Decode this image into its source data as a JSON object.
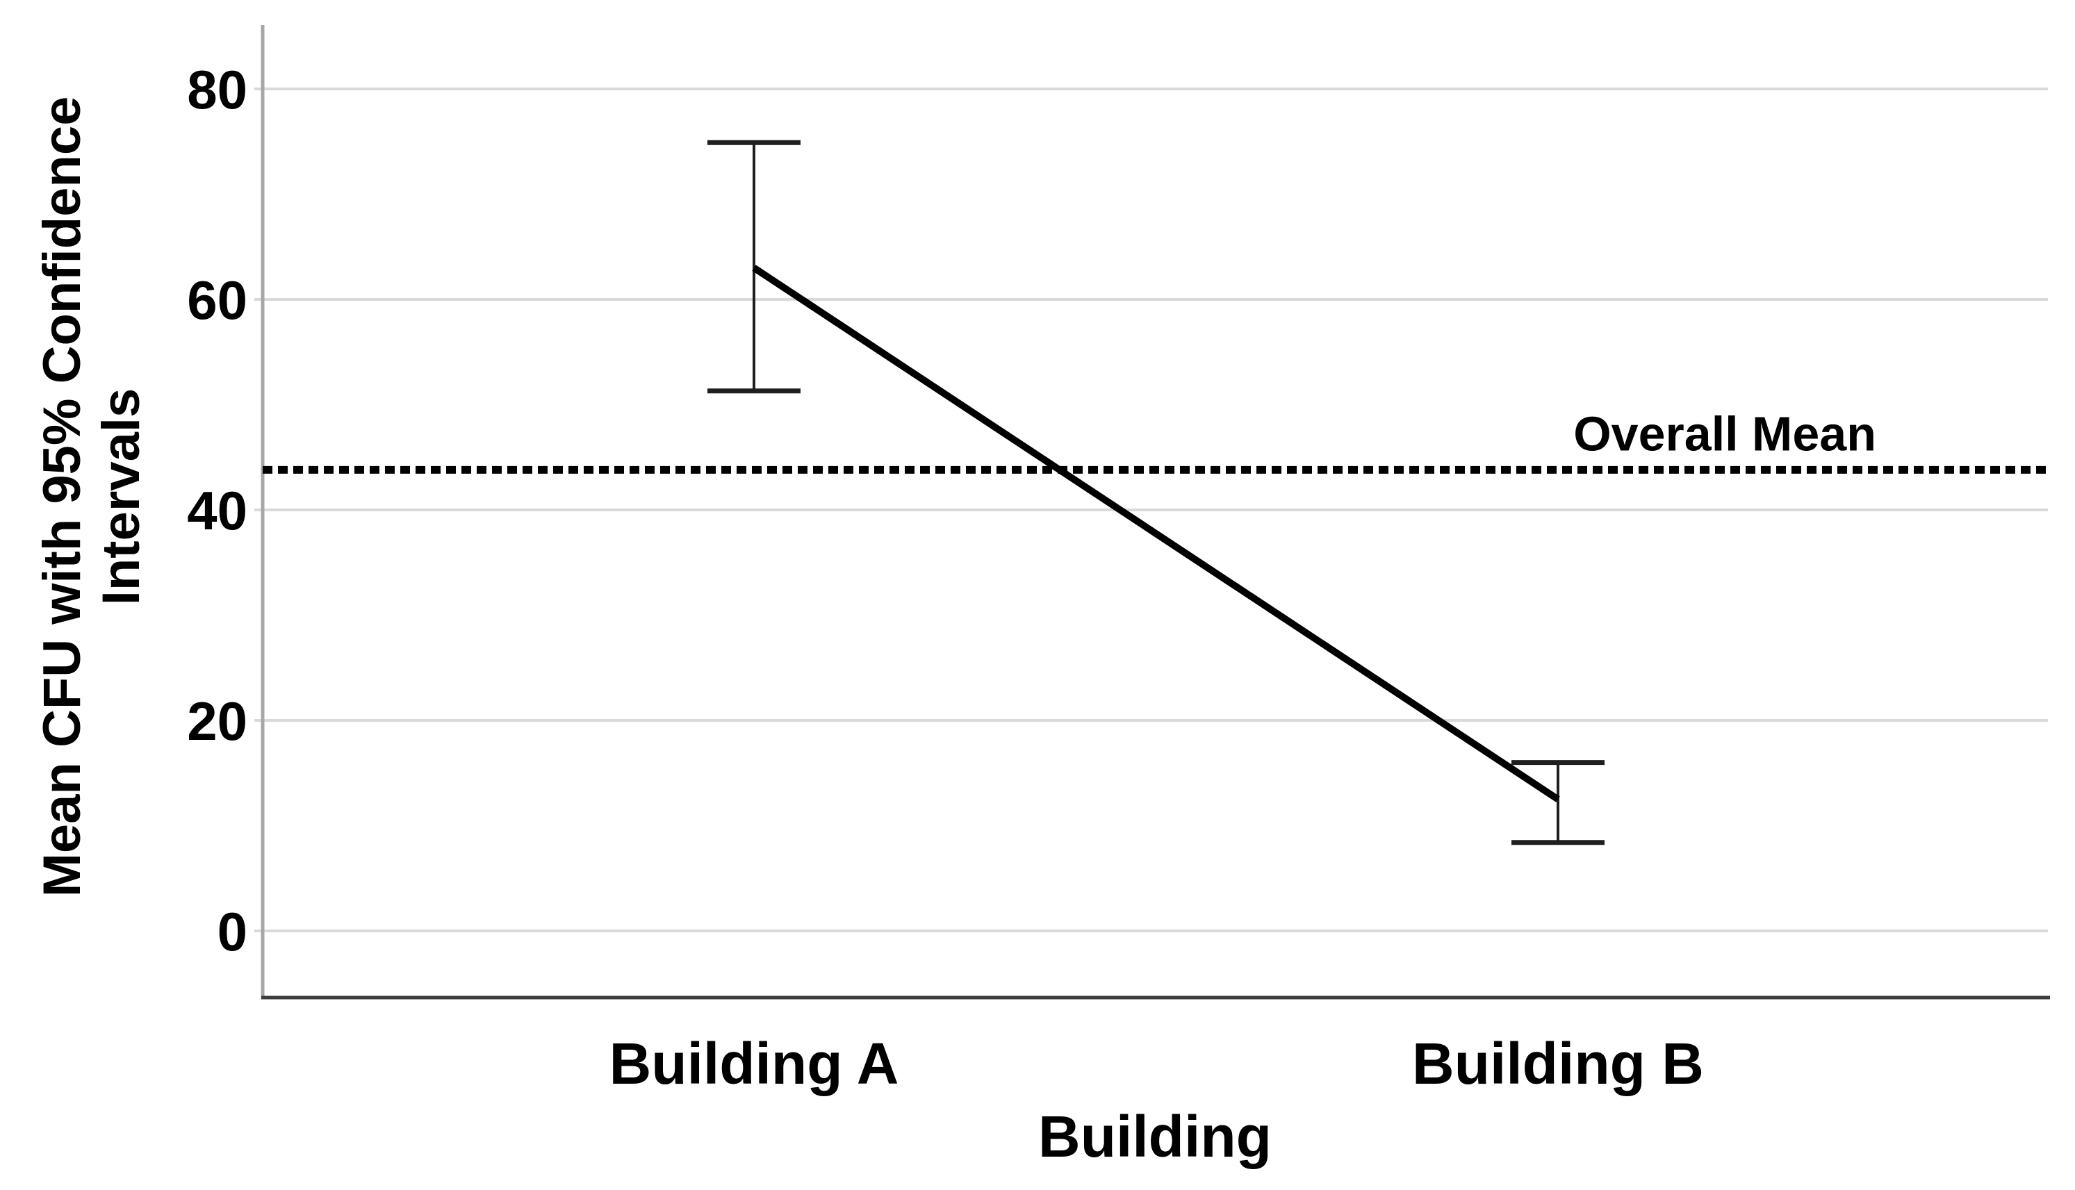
{
  "chart_data": {
    "type": "line",
    "title": "",
    "categories": [
      "Building A",
      "Building B"
    ],
    "series": [
      {
        "name": "Mean CFU",
        "values": [
          63,
          12.5
        ],
        "ci_low": [
          51.3,
          8.4
        ],
        "ci_high": [
          74.9,
          16
        ]
      }
    ],
    "reference_line": {
      "label": "Overall Mean",
      "value": 43.8,
      "style": "dotted"
    },
    "xlabel": "Building",
    "ylabel": "Mean CFU with 95% Confidence Intervals",
    "ylabel_lines": [
      "Mean CFU with 95% Confidence",
      "Intervals"
    ],
    "yticks": [
      0,
      20,
      40,
      60,
      80
    ],
    "ylim": [
      -6.3,
      86
    ],
    "grid": "horizontal",
    "legend_position": "none",
    "error_bars": "95% confidence intervals"
  },
  "colors": {
    "background": "#ffffff",
    "gridline": "#d9d9d9",
    "y_axis": "#a6a6a6",
    "x_axis": "#3c3c3c",
    "data": "#000000",
    "error_bar": "#1f1f1f",
    "text": "#000000"
  }
}
